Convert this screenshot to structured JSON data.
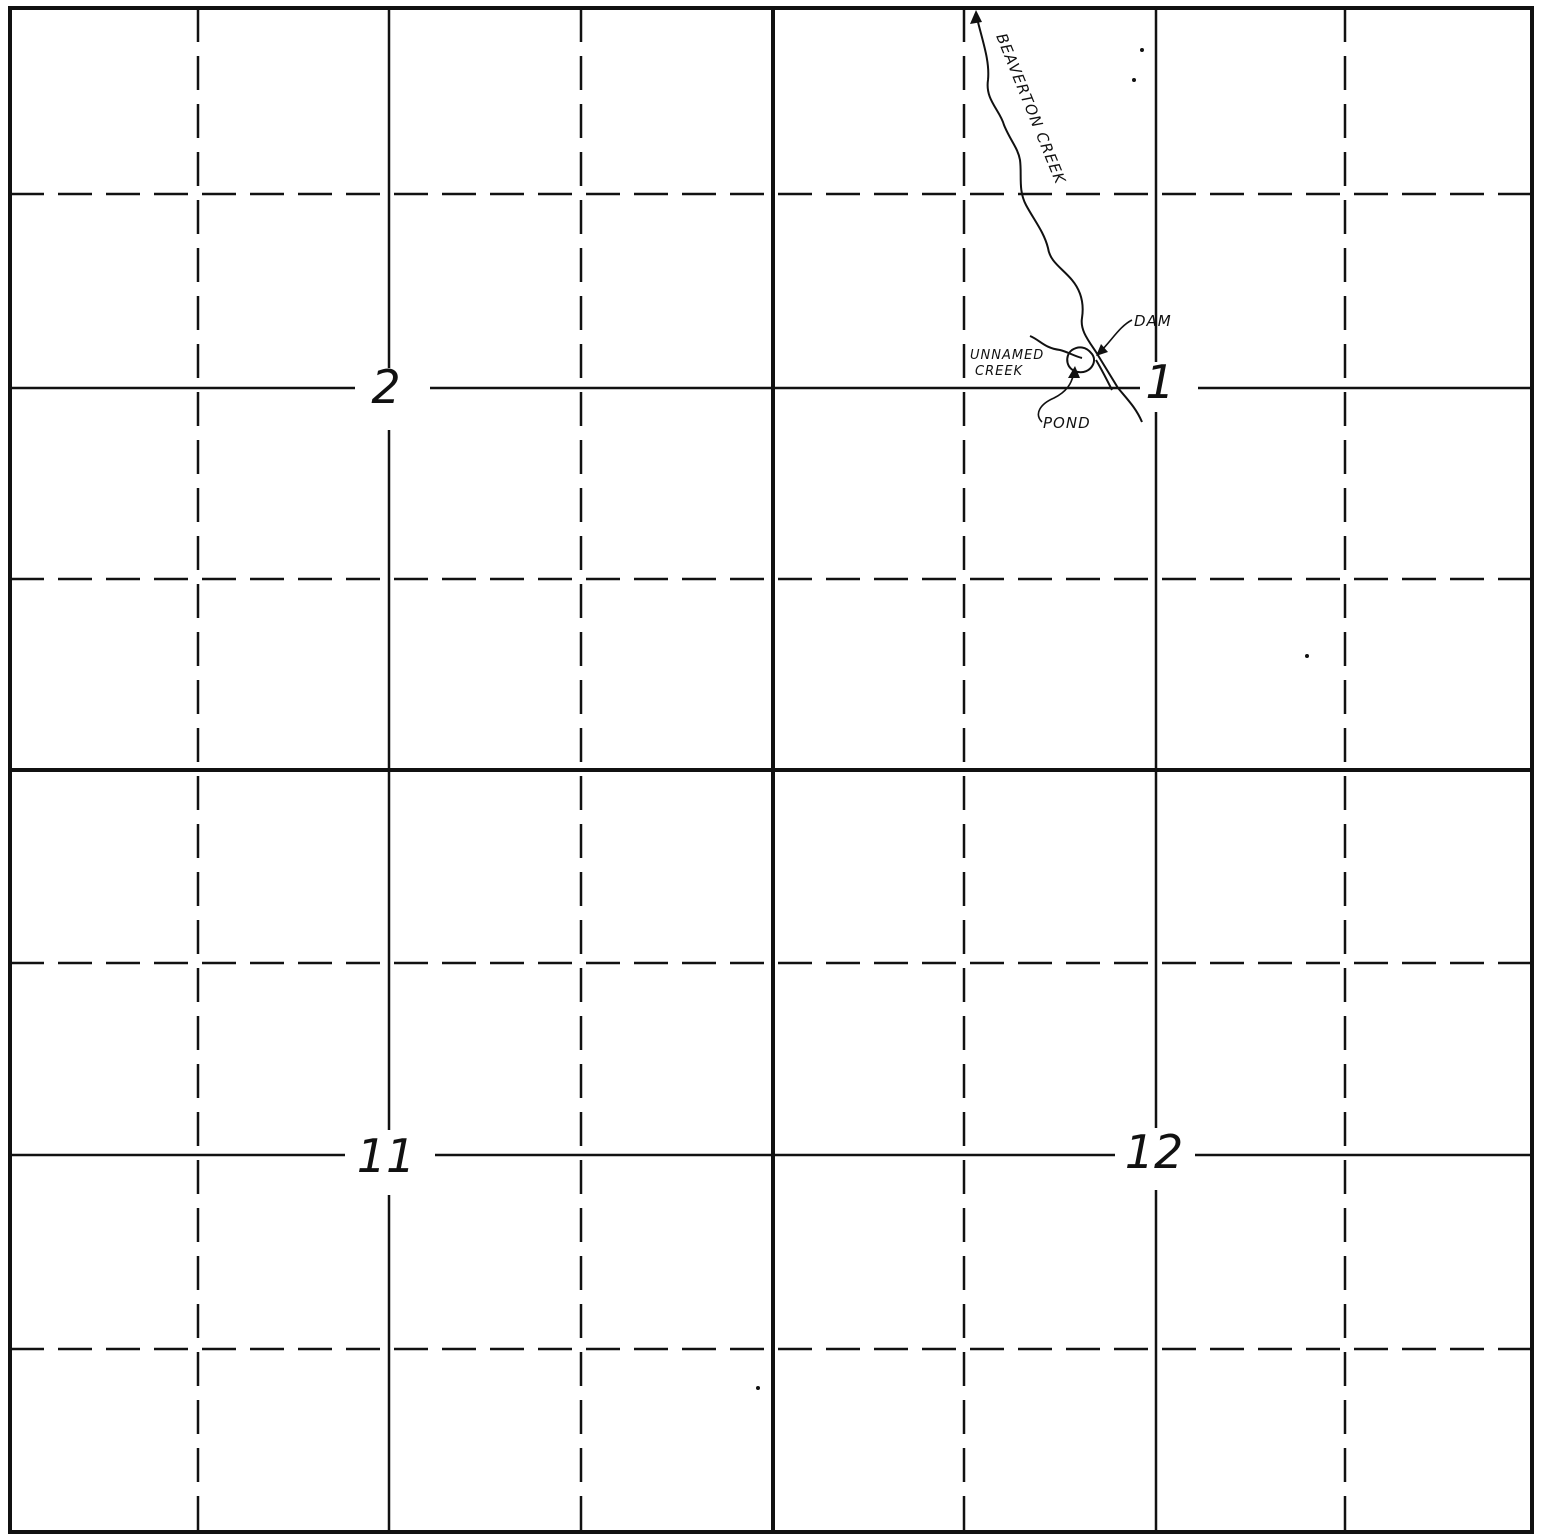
{
  "sections": {
    "top_left": "2",
    "top_right": "1",
    "bottom_left": "11",
    "bottom_right": "12"
  },
  "features": {
    "creek": "BEAVERTON CREEK",
    "dam": "DAM",
    "unnamed_creek_line1": "UNNAMED",
    "unnamed_creek_line2": "CREEK",
    "pond": "POND"
  },
  "colors": {
    "ink": "#111111",
    "paper": "#ffffff"
  }
}
